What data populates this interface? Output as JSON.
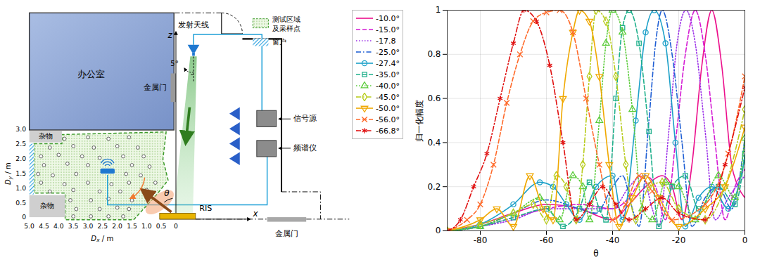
{
  "diagram": {
    "legend": {
      "test_region": [
        "测试区域",
        "及采样点"
      ],
      "window": "窗户"
    },
    "office": "办公室",
    "metal_doors": [
      "金属门",
      "金属门"
    ],
    "clutter": [
      "杂物",
      "杂物"
    ],
    "tx_antenna": "发射天线",
    "tilt": "5°",
    "z_axis": "z",
    "x_axis": "x",
    "ris": "RIS",
    "theta": "θ",
    "signal_source": "信号源",
    "spectrum_analyzer": "频谱仪",
    "dy_axis": {
      "label": [
        "D",
        "y",
        " / m"
      ],
      "lim": [
        0,
        3
      ],
      "ticks": [
        0,
        0.5,
        {
          "value": 1,
          "label": "1.0"
        },
        1.5,
        {
          "value": 2,
          "label": "2.0"
        },
        2.5,
        {
          "value": 3,
          "label": "3.0"
        }
      ]
    },
    "dx_axis": {
      "label": [
        "D",
        "x",
        " / m"
      ],
      "lim": [
        5,
        0
      ],
      "ticks": [
        {
          "value": 5,
          "label": "5.0"
        },
        4.5,
        {
          "value": 4,
          "label": "4.0"
        },
        3.5,
        {
          "value": 3,
          "label": "3.0"
        },
        2.5,
        {
          "value": 2,
          "label": "2.0"
        },
        1.5,
        {
          "value": 1,
          "label": "1.0"
        },
        0.5,
        0
      ]
    },
    "sample_points": [
      [
        3.8,
        2.7
      ],
      [
        3.0,
        2.75
      ],
      [
        2.3,
        2.7
      ],
      [
        1.6,
        2.75
      ],
      [
        4.3,
        2.4
      ],
      [
        3.5,
        2.45
      ],
      [
        2.8,
        2.4
      ],
      [
        2.0,
        2.45
      ],
      [
        1.3,
        2.4
      ],
      [
        4.6,
        2.1
      ],
      [
        4.0,
        2.15
      ],
      [
        3.2,
        2.1
      ],
      [
        2.6,
        2.05
      ],
      [
        1.8,
        2.1
      ],
      [
        1.1,
        2.1
      ],
      [
        4.5,
        1.8
      ],
      [
        3.7,
        1.85
      ],
      [
        3.0,
        1.8
      ],
      [
        1.5,
        1.8
      ],
      [
        0.9,
        1.75
      ],
      [
        4.7,
        1.5
      ],
      [
        4.2,
        1.45
      ],
      [
        3.4,
        1.5
      ],
      [
        1.7,
        1.5
      ],
      [
        1.2,
        1.45
      ],
      [
        4.6,
        1.2
      ],
      [
        3.8,
        1.15
      ],
      [
        3.0,
        1.2
      ],
      [
        2.2,
        1.15
      ],
      [
        1.6,
        1.2
      ],
      [
        0.7,
        1.2
      ],
      [
        4.3,
        0.9
      ],
      [
        3.5,
        0.95
      ],
      [
        2.6,
        0.9
      ],
      [
        1.9,
        0.9
      ],
      [
        1.0,
        0.95
      ],
      [
        3.6,
        0.6
      ],
      [
        2.9,
        0.6
      ],
      [
        2.3,
        0.65
      ],
      [
        1.5,
        0.6
      ],
      [
        3.4,
        0.3
      ],
      [
        2.6,
        0.3
      ],
      [
        2.0,
        0.35
      ],
      [
        1.6,
        0.3
      ],
      [
        3.5,
        0.05
      ],
      [
        2.9,
        0.05
      ],
      [
        2.3,
        0.05
      ],
      [
        1.8,
        0.05
      ]
    ]
  },
  "chart_data": {
    "type": "line",
    "xlabel": "θ",
    "ylabel": "归一化幅度",
    "xlim": [
      -90,
      0
    ],
    "xticks": [
      -80,
      -60,
      -40,
      -20,
      0
    ],
    "ylim": [
      0,
      1
    ],
    "yticks": [
      0,
      0.2,
      0.4,
      0.6,
      0.8,
      1
    ],
    "grid": true,
    "legend": "left",
    "series": [
      {
        "name": "-10.0°",
        "color": "#ec0f8c",
        "line_style": "solid",
        "marker": "none",
        "x": [
          -90,
          -80,
          -70,
          -60,
          -50,
          -40,
          -35,
          -30,
          -25,
          -22,
          -19,
          -16,
          -13,
          -10,
          -7,
          -4,
          -2,
          0
        ],
        "values": [
          0,
          0.03,
          0.08,
          0.12,
          0.1,
          0.05,
          0.12,
          0.2,
          0.25,
          0.2,
          0.05,
          0.3,
          0.75,
          1,
          0.75,
          0.3,
          0.2,
          0.15
        ]
      },
      {
        "name": "-15.0°",
        "color": "#d41ad4",
        "line_style": "dashed",
        "marker": "none",
        "x": [
          -90,
          -80,
          -70,
          -60,
          -50,
          -40,
          -35,
          -30,
          -27,
          -24,
          -21,
          -18,
          -15,
          -12,
          -9,
          -6,
          -3,
          0
        ],
        "values": [
          0,
          0.02,
          0.06,
          0.1,
          0.12,
          0.1,
          0.15,
          0.25,
          0.2,
          0.05,
          0.4,
          0.8,
          1,
          0.8,
          0.4,
          0.05,
          0.2,
          0.28
        ]
      },
      {
        "name": "-17.8",
        "color": "#9b30e8",
        "line_style": "dotted",
        "marker": "none",
        "x": [
          -90,
          -80,
          -70,
          -60,
          -50,
          -40,
          -35,
          -31,
          -28,
          -26,
          -23,
          -20.5,
          -17.8,
          -15,
          -12,
          -9,
          -5,
          0
        ],
        "values": [
          0,
          0.02,
          0.05,
          0.1,
          0.1,
          0.1,
          0.2,
          0.25,
          0.1,
          0.02,
          0.45,
          0.85,
          1,
          0.85,
          0.45,
          0.05,
          0.15,
          0.25
        ]
      },
      {
        "name": "-25.0°",
        "color": "#1f5fd4",
        "line_style": "dashdot",
        "marker": "none",
        "x": [
          -90,
          -80,
          -70,
          -60,
          -50,
          -45,
          -40,
          -37,
          -34,
          -32,
          -29,
          -27,
          -25,
          -22,
          -19,
          -16,
          -12,
          -8,
          -4,
          0
        ],
        "values": [
          0,
          0.02,
          0.08,
          0.14,
          0.1,
          0.08,
          0.2,
          0.25,
          0.1,
          0.02,
          0.5,
          0.85,
          1,
          0.8,
          0.4,
          0.02,
          0.15,
          0.2,
          0.1,
          0.42
        ]
      },
      {
        "name": "-27.4°",
        "color": "#1ca0c8",
        "line_style": "solid",
        "marker": "circle",
        "x": [
          -90,
          -80,
          -70,
          -62,
          -58,
          -54,
          -50,
          -45,
          -40,
          -37,
          -33,
          -30,
          -27.4,
          -24,
          -21,
          -18,
          -14,
          -10,
          -5,
          0
        ],
        "values": [
          0,
          0.03,
          0.12,
          0.22,
          0.2,
          0.12,
          0.05,
          0.2,
          0.25,
          0.05,
          0.5,
          0.9,
          1,
          0.85,
          0.4,
          0.02,
          0.15,
          0.2,
          0.1,
          0.33
        ]
      },
      {
        "name": "-35.0°",
        "color": "#1fb08c",
        "line_style": "dashed",
        "marker": "square",
        "x": [
          -90,
          -80,
          -70,
          -60,
          -55,
          -50,
          -47,
          -44,
          -42,
          -39,
          -37,
          -35,
          -32,
          -29,
          -26,
          -22,
          -18,
          -14,
          -8,
          -3,
          0
        ],
        "values": [
          0,
          0.02,
          0.06,
          0.1,
          0.02,
          0.1,
          0.22,
          0.1,
          0.05,
          0.6,
          0.92,
          1,
          0.85,
          0.45,
          0.02,
          0.2,
          0.25,
          0.1,
          0.2,
          0.12,
          0.35
        ]
      },
      {
        "name": "-40.0°",
        "color": "#5ccc3c",
        "line_style": "dotted",
        "marker": "triangle",
        "x": [
          -90,
          -80,
          -70,
          -62,
          -56,
          -52,
          -49,
          -47,
          -44,
          -42,
          -40,
          -37,
          -34,
          -31,
          -28,
          -24,
          -20,
          -15,
          -8,
          -3,
          0
        ],
        "values": [
          0,
          0.02,
          0.08,
          0.15,
          0.05,
          0.25,
          0.2,
          0.05,
          0.5,
          0.85,
          1,
          0.9,
          0.55,
          0.1,
          0.05,
          0.22,
          0.2,
          0.05,
          0.25,
          0.15,
          0.42
        ]
      },
      {
        "name": "-45.0°",
        "color": "#b8cc1c",
        "line_style": "dashdot",
        "marker": "diamond",
        "x": [
          -90,
          -80,
          -70,
          -64,
          -60,
          -57,
          -54,
          -51,
          -49,
          -47,
          -45,
          -42,
          -39,
          -36,
          -33,
          -29,
          -25,
          -20,
          -12,
          -6,
          0
        ],
        "values": [
          0,
          0.03,
          0.08,
          0.12,
          0.05,
          0.25,
          0.2,
          0.05,
          0.3,
          0.7,
          1,
          0.95,
          0.7,
          0.3,
          0.05,
          0.2,
          0.22,
          0.1,
          0.05,
          0.2,
          0.55
        ]
      },
      {
        "name": "-50.0°",
        "color": "#f0a800",
        "line_style": "solid",
        "marker": "triangle-down",
        "x": [
          -90,
          -80,
          -75,
          -70,
          -65,
          -61,
          -58,
          -55,
          -52,
          -50,
          -47,
          -44,
          -41,
          -38,
          -34,
          -30,
          -26,
          -20,
          -12,
          -6,
          0
        ],
        "values": [
          0,
          0.05,
          0.1,
          0.02,
          0.25,
          0.1,
          0.05,
          0.6,
          0.9,
          1,
          0.95,
          0.7,
          0.3,
          0.02,
          0.15,
          0.25,
          0.15,
          0.02,
          0.1,
          0.2,
          0.47
        ]
      },
      {
        "name": "-56.0°",
        "color": "#ff6a2a",
        "line_style": "dashed",
        "marker": "x",
        "x": [
          -90,
          -84,
          -80,
          -76,
          -72,
          -68,
          -64,
          -60,
          -56,
          -52,
          -48,
          -44,
          -40,
          -36,
          -32,
          -28,
          -22,
          -12,
          -5,
          0
        ],
        "values": [
          0,
          0.05,
          0.12,
          0.3,
          0.58,
          0.8,
          0.95,
          0.99,
          1,
          0.9,
          0.6,
          0.3,
          0.05,
          0.12,
          0.25,
          0.18,
          0.05,
          0.12,
          0.35,
          0.7
        ]
      },
      {
        "name": "-66.8°",
        "color": "#e01010",
        "line_style": "dashdot",
        "marker": "asterisk",
        "x": [
          -90,
          -86,
          -82,
          -78,
          -74,
          -70,
          -66.8,
          -63,
          -59,
          -55,
          -51,
          -47,
          -43,
          -39,
          -35,
          -30,
          -25,
          -20,
          -12,
          -6,
          0
        ],
        "values": [
          0,
          0.05,
          0.2,
          0.35,
          0.6,
          0.85,
          1,
          0.95,
          0.75,
          0.4,
          0.05,
          0.12,
          0.2,
          0.12,
          0.05,
          0.1,
          0.15,
          0.08,
          0.05,
          0.3,
          0.65
        ]
      }
    ]
  }
}
